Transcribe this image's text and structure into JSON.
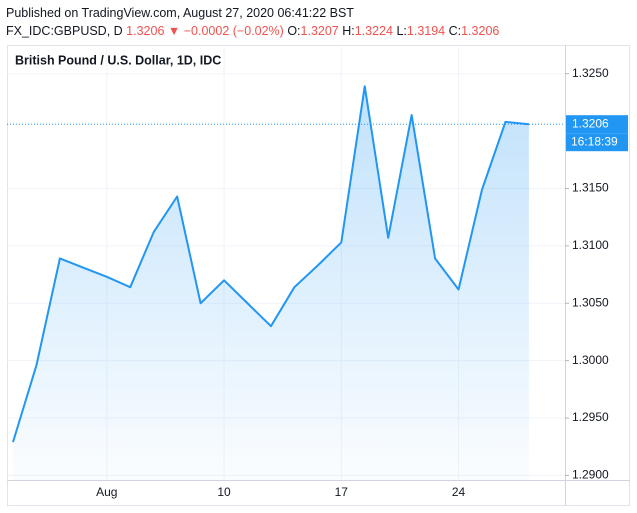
{
  "header": {
    "published": "Published on TradingView.com, August 27, 2020 06:41:22 BST",
    "symbol": "FX_IDC:GBPUSD, D",
    "price": "1.3206",
    "arrow": "▼",
    "change": "−0.0002 (−0.02%)",
    "ohlc": [
      {
        "key": "O:",
        "value": "1.3207"
      },
      {
        "key": "H:",
        "value": "1.3224"
      },
      {
        "key": "L:",
        "value": "1.3194"
      },
      {
        "key": "C:",
        "value": "1.3206"
      }
    ]
  },
  "chart_data": {
    "type": "area",
    "title": "British Pound / U.S. Dollar, 1D, IDC",
    "categories": [
      null,
      null,
      null,
      null,
      "Aug",
      null,
      null,
      null,
      null,
      "10",
      null,
      null,
      null,
      null,
      "17",
      null,
      null,
      null,
      null,
      "24",
      null,
      null,
      null
    ],
    "values": [
      1.2929,
      1.2996,
      1.3089,
      1.3081,
      1.3073,
      1.3064,
      1.3112,
      1.3143,
      1.305,
      1.307,
      1.305,
      1.303,
      1.3064,
      1.3083,
      1.3103,
      1.3239,
      1.3107,
      1.3214,
      1.3089,
      1.3062,
      1.3149,
      1.3208,
      1.3206
    ],
    "color": "#2196f3",
    "ylim": [
      1.2896,
      1.3275
    ],
    "yticks": [
      {
        "value": 1.29,
        "label": "1.2900"
      },
      {
        "value": 1.295,
        "label": "1.2950"
      },
      {
        "value": 1.3,
        "label": "1.3000"
      },
      {
        "value": 1.305,
        "label": "1.3050"
      },
      {
        "value": 1.31,
        "label": "1.3100"
      },
      {
        "value": 1.315,
        "label": "1.3150"
      },
      {
        "value": 1.325,
        "label": "1.3250"
      }
    ],
    "grid": true,
    "last_price": 1.3206,
    "countdown": "16:18:39"
  }
}
